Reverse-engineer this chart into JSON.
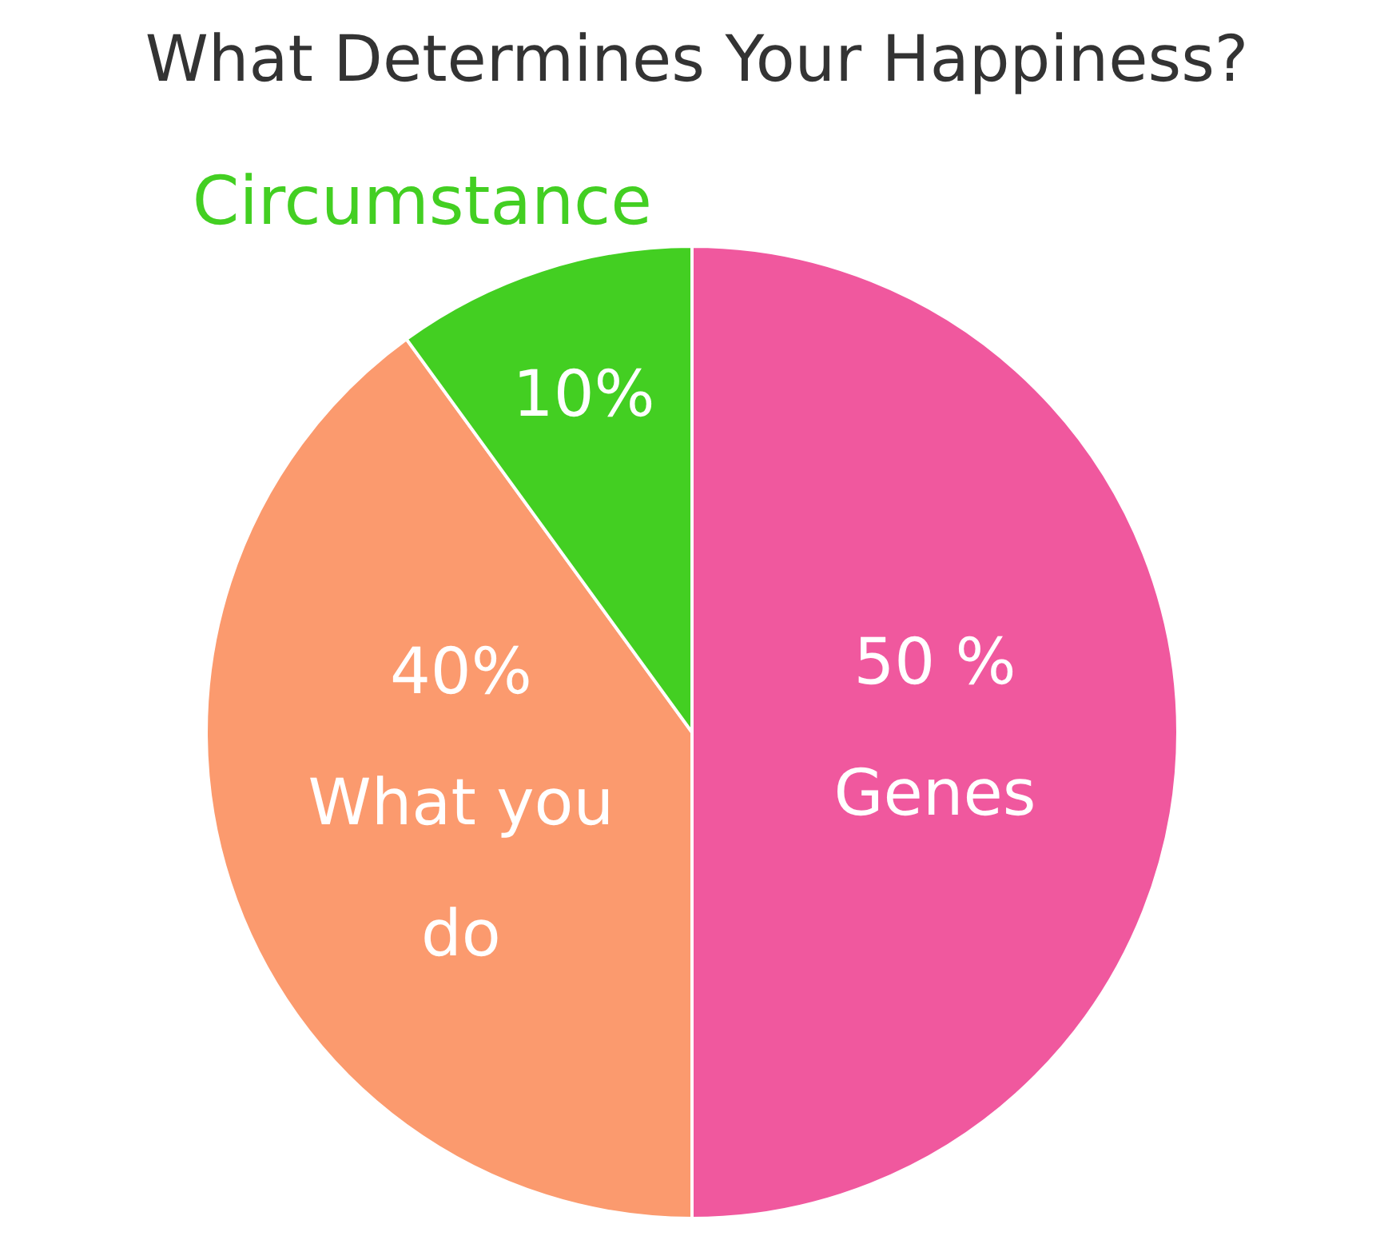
{
  "chart_data": {
    "type": "pie",
    "title": "What Determines Your Happiness?",
    "categories": [
      "Genes",
      "What you do",
      "Circumstance"
    ],
    "values": [
      50,
      40,
      10
    ],
    "colors": [
      "#f0589e",
      "#fb9a6e",
      "#43cf22"
    ],
    "value_labels": [
      "50 %",
      "40%",
      "10%"
    ],
    "legend": false
  }
}
